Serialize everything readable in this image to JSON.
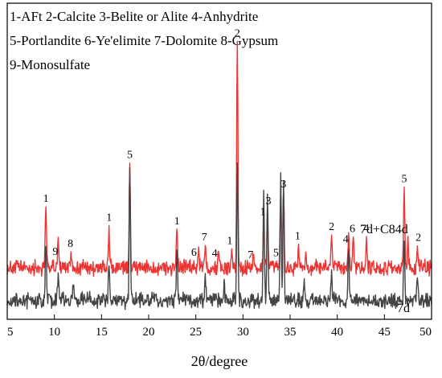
{
  "chart_data": {
    "type": "line",
    "title": "",
    "xlabel": "2θ/degree",
    "ylabel": "",
    "xlim": [
      5,
      50
    ],
    "y_ticks_shown": false,
    "grid": false,
    "x_ticks": [
      5,
      10,
      15,
      20,
      25,
      30,
      35,
      40,
      45,
      50
    ],
    "legend_position": "top-left",
    "legend_lines": [
      "1-AFt 2-Calcite 3-Belite or Alite 4-Anhydrite",
      "5-Portlandite 6-Ye'elimite 7-Dolomite 8-Gypsum",
      "9-Monosulfate"
    ],
    "series": [
      {
        "name": "7d+C84d",
        "color": "#ee3333",
        "baseline": 0.18,
        "peaks": [
          [
            9.1,
            0.28
          ],
          [
            10.4,
            0.14
          ],
          [
            11.8,
            0.07
          ],
          [
            15.8,
            0.15
          ],
          [
            18.0,
            0.42
          ],
          [
            23.0,
            0.18
          ],
          [
            25.3,
            0.08
          ],
          [
            26.0,
            0.1
          ],
          [
            27.4,
            0.07
          ],
          [
            28.8,
            0.07
          ],
          [
            29.4,
            1.0
          ],
          [
            31.1,
            0.06
          ],
          [
            32.2,
            0.2
          ],
          [
            32.6,
            0.24
          ],
          [
            34.0,
            0.3
          ],
          [
            34.3,
            0.34
          ],
          [
            35.9,
            0.1
          ],
          [
            36.7,
            0.06
          ],
          [
            39.4,
            0.17
          ],
          [
            41.2,
            0.14
          ],
          [
            41.7,
            0.1
          ],
          [
            43.1,
            0.12
          ],
          [
            47.1,
            0.32
          ],
          [
            47.5,
            0.12
          ],
          [
            48.5,
            0.08
          ]
        ]
      },
      {
        "name": "7d",
        "color": "#444444",
        "baseline": 0.04,
        "peaks": [
          [
            9.1,
            0.26
          ],
          [
            10.4,
            0.12
          ],
          [
            12.0,
            0.08
          ],
          [
            15.8,
            0.14
          ],
          [
            18.0,
            0.6
          ],
          [
            23.0,
            0.2
          ],
          [
            26.0,
            0.1
          ],
          [
            28.0,
            0.08
          ],
          [
            29.4,
            0.6
          ],
          [
            32.2,
            0.5
          ],
          [
            32.6,
            0.46
          ],
          [
            34.0,
            0.55
          ],
          [
            34.3,
            0.5
          ],
          [
            36.5,
            0.08
          ],
          [
            39.4,
            0.14
          ],
          [
            41.2,
            0.24
          ],
          [
            47.1,
            0.27
          ],
          [
            48.5,
            0.08
          ]
        ]
      }
    ],
    "annotations": [
      {
        "text": "1",
        "x": 9.1,
        "series": "7d+C84d"
      },
      {
        "text": "9",
        "x": 10.1,
        "series": "7d+C84d"
      },
      {
        "text": "8",
        "x": 11.7,
        "series": "7d+C84d"
      },
      {
        "text": "1",
        "x": 15.8,
        "series": "7d+C84d"
      },
      {
        "text": "5",
        "x": 18.0,
        "series": "7d+C84d"
      },
      {
        "text": "1",
        "x": 23.0,
        "series": "7d+C84d"
      },
      {
        "text": "6",
        "x": 24.8,
        "series": "7d+C84d"
      },
      {
        "text": "7",
        "x": 25.9,
        "series": "7d+C84d"
      },
      {
        "text": "4",
        "x": 27.0,
        "series": "7d+C84d"
      },
      {
        "text": "1",
        "x": 28.6,
        "series": "7d+C84d"
      },
      {
        "text": "2",
        "x": 29.4,
        "series": "7d+C84d"
      },
      {
        "text": "7",
        "x": 30.8,
        "series": "7d+C84d"
      },
      {
        "text": "1",
        "x": 32.1,
        "series": "7d+C84d"
      },
      {
        "text": "3",
        "x": 32.7,
        "series": "7d+C84d"
      },
      {
        "text": "5",
        "x": 33.5,
        "series": "7d+C84d"
      },
      {
        "text": "3",
        "x": 34.3,
        "series": "7d+C84d"
      },
      {
        "text": "1",
        "x": 35.8,
        "series": "7d+C84d"
      },
      {
        "text": "2",
        "x": 39.4,
        "series": "7d+C84d"
      },
      {
        "text": "4",
        "x": 40.9,
        "series": "7d+C84d"
      },
      {
        "text": "6",
        "x": 41.6,
        "series": "7d+C84d"
      },
      {
        "text": "4",
        "x": 43.1,
        "series": "7d+C84d"
      },
      {
        "text": "5",
        "x": 47.1,
        "series": "7d+C84d"
      },
      {
        "text": "2",
        "x": 48.6,
        "series": "7d+C84d"
      }
    ]
  }
}
